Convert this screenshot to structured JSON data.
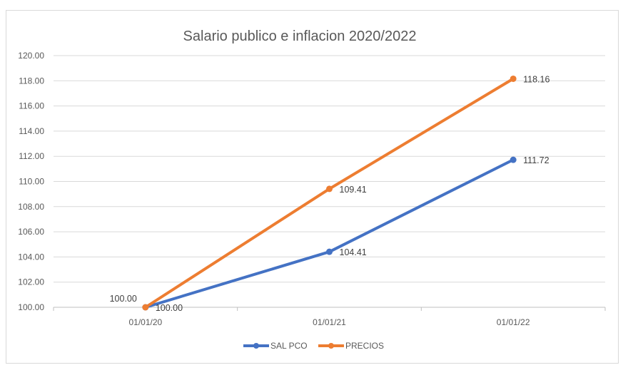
{
  "chart_data": {
    "type": "line",
    "title": "Salario publico e inflacion 2020/2022",
    "xlabel": "",
    "ylabel": "",
    "categories": [
      "01/01/20",
      "01/01/21",
      "01/01/22"
    ],
    "ylim": [
      100,
      120
    ],
    "yticks": [
      "100.00",
      "102.00",
      "104.00",
      "106.00",
      "108.00",
      "110.00",
      "112.00",
      "114.00",
      "116.00",
      "118.00",
      "120.00"
    ],
    "grid": true,
    "legend_position": "bottom",
    "series": [
      {
        "name": "SAL PCO",
        "color": "#4472C4",
        "values": [
          100.0,
          104.41,
          111.72
        ],
        "labels": [
          "100.00",
          "104.41",
          "111.72"
        ]
      },
      {
        "name": "PRECIOS",
        "color": "#ED7D31",
        "values": [
          100.0,
          109.41,
          118.16
        ],
        "labels": [
          "100.00",
          "109.41",
          "118.16"
        ]
      }
    ]
  }
}
